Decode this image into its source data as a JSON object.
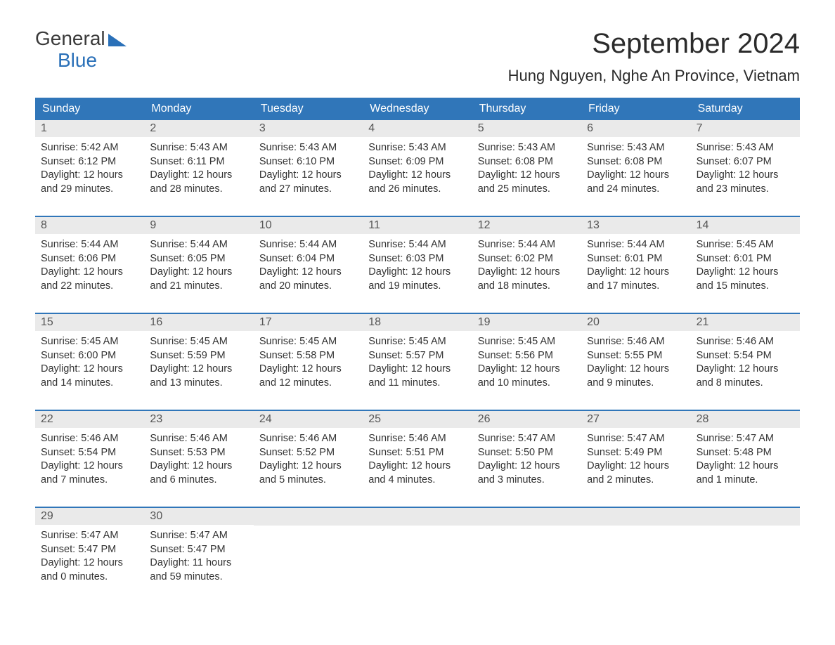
{
  "logo": {
    "line1": "General",
    "line2": "Blue"
  },
  "title": "September 2024",
  "location": "Hung Nguyen, Nghe An Province, Vietnam",
  "weekdays": [
    "Sunday",
    "Monday",
    "Tuesday",
    "Wednesday",
    "Thursday",
    "Friday",
    "Saturday"
  ],
  "colors": {
    "header_bg": "#3076b9",
    "header_text": "#ffffff",
    "week_border": "#3076b9",
    "daynum_bg": "#eaeaea",
    "daynum_text": "#555555",
    "body_text": "#333333",
    "logo_blue": "#2a70b8",
    "title_text": "#2b2b2b"
  },
  "weeks": [
    [
      {
        "day": "1",
        "sunrise": "Sunrise: 5:42 AM",
        "sunset": "Sunset: 6:12 PM",
        "daylight1": "Daylight: 12 hours",
        "daylight2": "and 29 minutes."
      },
      {
        "day": "2",
        "sunrise": "Sunrise: 5:43 AM",
        "sunset": "Sunset: 6:11 PM",
        "daylight1": "Daylight: 12 hours",
        "daylight2": "and 28 minutes."
      },
      {
        "day": "3",
        "sunrise": "Sunrise: 5:43 AM",
        "sunset": "Sunset: 6:10 PM",
        "daylight1": "Daylight: 12 hours",
        "daylight2": "and 27 minutes."
      },
      {
        "day": "4",
        "sunrise": "Sunrise: 5:43 AM",
        "sunset": "Sunset: 6:09 PM",
        "daylight1": "Daylight: 12 hours",
        "daylight2": "and 26 minutes."
      },
      {
        "day": "5",
        "sunrise": "Sunrise: 5:43 AM",
        "sunset": "Sunset: 6:08 PM",
        "daylight1": "Daylight: 12 hours",
        "daylight2": "and 25 minutes."
      },
      {
        "day": "6",
        "sunrise": "Sunrise: 5:43 AM",
        "sunset": "Sunset: 6:08 PM",
        "daylight1": "Daylight: 12 hours",
        "daylight2": "and 24 minutes."
      },
      {
        "day": "7",
        "sunrise": "Sunrise: 5:43 AM",
        "sunset": "Sunset: 6:07 PM",
        "daylight1": "Daylight: 12 hours",
        "daylight2": "and 23 minutes."
      }
    ],
    [
      {
        "day": "8",
        "sunrise": "Sunrise: 5:44 AM",
        "sunset": "Sunset: 6:06 PM",
        "daylight1": "Daylight: 12 hours",
        "daylight2": "and 22 minutes."
      },
      {
        "day": "9",
        "sunrise": "Sunrise: 5:44 AM",
        "sunset": "Sunset: 6:05 PM",
        "daylight1": "Daylight: 12 hours",
        "daylight2": "and 21 minutes."
      },
      {
        "day": "10",
        "sunrise": "Sunrise: 5:44 AM",
        "sunset": "Sunset: 6:04 PM",
        "daylight1": "Daylight: 12 hours",
        "daylight2": "and 20 minutes."
      },
      {
        "day": "11",
        "sunrise": "Sunrise: 5:44 AM",
        "sunset": "Sunset: 6:03 PM",
        "daylight1": "Daylight: 12 hours",
        "daylight2": "and 19 minutes."
      },
      {
        "day": "12",
        "sunrise": "Sunrise: 5:44 AM",
        "sunset": "Sunset: 6:02 PM",
        "daylight1": "Daylight: 12 hours",
        "daylight2": "and 18 minutes."
      },
      {
        "day": "13",
        "sunrise": "Sunrise: 5:44 AM",
        "sunset": "Sunset: 6:01 PM",
        "daylight1": "Daylight: 12 hours",
        "daylight2": "and 17 minutes."
      },
      {
        "day": "14",
        "sunrise": "Sunrise: 5:45 AM",
        "sunset": "Sunset: 6:01 PM",
        "daylight1": "Daylight: 12 hours",
        "daylight2": "and 15 minutes."
      }
    ],
    [
      {
        "day": "15",
        "sunrise": "Sunrise: 5:45 AM",
        "sunset": "Sunset: 6:00 PM",
        "daylight1": "Daylight: 12 hours",
        "daylight2": "and 14 minutes."
      },
      {
        "day": "16",
        "sunrise": "Sunrise: 5:45 AM",
        "sunset": "Sunset: 5:59 PM",
        "daylight1": "Daylight: 12 hours",
        "daylight2": "and 13 minutes."
      },
      {
        "day": "17",
        "sunrise": "Sunrise: 5:45 AM",
        "sunset": "Sunset: 5:58 PM",
        "daylight1": "Daylight: 12 hours",
        "daylight2": "and 12 minutes."
      },
      {
        "day": "18",
        "sunrise": "Sunrise: 5:45 AM",
        "sunset": "Sunset: 5:57 PM",
        "daylight1": "Daylight: 12 hours",
        "daylight2": "and 11 minutes."
      },
      {
        "day": "19",
        "sunrise": "Sunrise: 5:45 AM",
        "sunset": "Sunset: 5:56 PM",
        "daylight1": "Daylight: 12 hours",
        "daylight2": "and 10 minutes."
      },
      {
        "day": "20",
        "sunrise": "Sunrise: 5:46 AM",
        "sunset": "Sunset: 5:55 PM",
        "daylight1": "Daylight: 12 hours",
        "daylight2": "and 9 minutes."
      },
      {
        "day": "21",
        "sunrise": "Sunrise: 5:46 AM",
        "sunset": "Sunset: 5:54 PM",
        "daylight1": "Daylight: 12 hours",
        "daylight2": "and 8 minutes."
      }
    ],
    [
      {
        "day": "22",
        "sunrise": "Sunrise: 5:46 AM",
        "sunset": "Sunset: 5:54 PM",
        "daylight1": "Daylight: 12 hours",
        "daylight2": "and 7 minutes."
      },
      {
        "day": "23",
        "sunrise": "Sunrise: 5:46 AM",
        "sunset": "Sunset: 5:53 PM",
        "daylight1": "Daylight: 12 hours",
        "daylight2": "and 6 minutes."
      },
      {
        "day": "24",
        "sunrise": "Sunrise: 5:46 AM",
        "sunset": "Sunset: 5:52 PM",
        "daylight1": "Daylight: 12 hours",
        "daylight2": "and 5 minutes."
      },
      {
        "day": "25",
        "sunrise": "Sunrise: 5:46 AM",
        "sunset": "Sunset: 5:51 PM",
        "daylight1": "Daylight: 12 hours",
        "daylight2": "and 4 minutes."
      },
      {
        "day": "26",
        "sunrise": "Sunrise: 5:47 AM",
        "sunset": "Sunset: 5:50 PM",
        "daylight1": "Daylight: 12 hours",
        "daylight2": "and 3 minutes."
      },
      {
        "day": "27",
        "sunrise": "Sunrise: 5:47 AM",
        "sunset": "Sunset: 5:49 PM",
        "daylight1": "Daylight: 12 hours",
        "daylight2": "and 2 minutes."
      },
      {
        "day": "28",
        "sunrise": "Sunrise: 5:47 AM",
        "sunset": "Sunset: 5:48 PM",
        "daylight1": "Daylight: 12 hours",
        "daylight2": "and 1 minute."
      }
    ],
    [
      {
        "day": "29",
        "sunrise": "Sunrise: 5:47 AM",
        "sunset": "Sunset: 5:47 PM",
        "daylight1": "Daylight: 12 hours",
        "daylight2": "and 0 minutes."
      },
      {
        "day": "30",
        "sunrise": "Sunrise: 5:47 AM",
        "sunset": "Sunset: 5:47 PM",
        "daylight1": "Daylight: 11 hours",
        "daylight2": "and 59 minutes."
      },
      {
        "empty": true
      },
      {
        "empty": true
      },
      {
        "empty": true
      },
      {
        "empty": true
      },
      {
        "empty": true
      }
    ]
  ]
}
